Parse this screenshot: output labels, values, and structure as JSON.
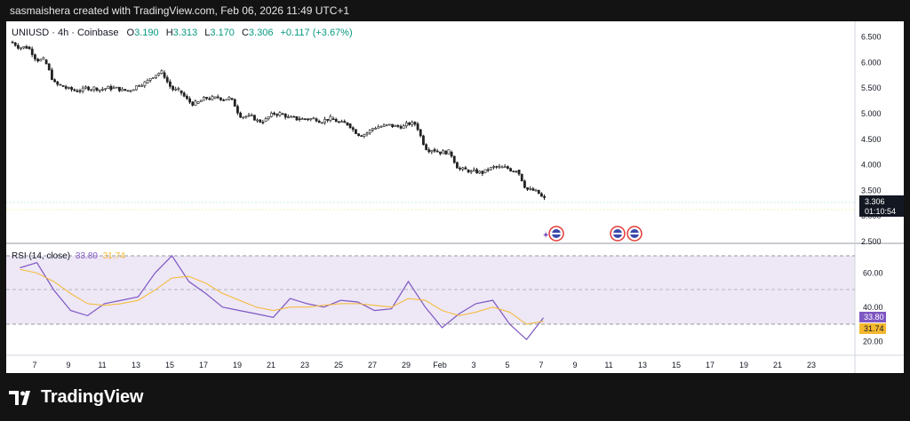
{
  "header": {
    "caption": "sasmaishera created with TradingView.com, Feb 06, 2026 11:49 UTC+1"
  },
  "footer": {
    "brand": "TradingView"
  },
  "legend": {
    "symbol": "UNIUSD",
    "interval": "4h",
    "exchange": "Coinbase",
    "o_label": "O",
    "o_value": "3.190",
    "h_label": "H",
    "h_value": "3.313",
    "l_label": "L",
    "l_value": "3.170",
    "c_label": "C",
    "c_value": "3.306",
    "change": "+0.117 (+3.67%)"
  },
  "rsi_legend": {
    "name": "RSI (14, close)",
    "rsi_value": "33.80",
    "ma_value": "31.74"
  },
  "badges": {
    "price": "3.306",
    "countdown": "01:10:54",
    "rsi": "33.80",
    "rsi_ma": "31.74"
  },
  "colors": {
    "up": "#089981",
    "down": "#f23645",
    "candle": "#222222",
    "rsi_line": "#7e57c2",
    "rsi_ma": "#f5b82e",
    "rsi_band": "#ede7f6",
    "badge_price": "#131722",
    "badge_rsi": "#7e57c2",
    "badge_ma": "#f5b82e",
    "flag_red": "#e53935"
  },
  "chart_data": [
    {
      "type": "candlestick",
      "symbol": "UNIUSD",
      "interval": "4h",
      "y_scale": [
        2.5,
        6.7
      ],
      "y_ticks": [
        "6.500",
        "6.000",
        "5.500",
        "5.000",
        "4.500",
        "4.000",
        "3.500",
        "3.000",
        "2.500"
      ],
      "x_ticks": [
        "7",
        "9",
        "11",
        "13",
        "15",
        "17",
        "19",
        "21",
        "23",
        "25",
        "27",
        "29",
        "Feb",
        "3",
        "5",
        "7",
        "9",
        "11",
        "13",
        "15",
        "17",
        "19",
        "21",
        "23"
      ],
      "x_range": [
        "Jan 6",
        "Feb 24"
      ],
      "approx_closes_daily": [
        {
          "date": "Jan 6",
          "close": 6.3
        },
        {
          "date": "Jan 7",
          "close": 6.05
        },
        {
          "date": "Jan 8",
          "close": 5.55
        },
        {
          "date": "Jan 9",
          "close": 5.45
        },
        {
          "date": "Jan 10",
          "close": 5.5
        },
        {
          "date": "Jan 11",
          "close": 5.5
        },
        {
          "date": "Jan 12",
          "close": 5.45
        },
        {
          "date": "Jan 13",
          "close": 5.6
        },
        {
          "date": "Jan 14",
          "close": 5.8
        },
        {
          "date": "Jan 15",
          "close": 5.45
        },
        {
          "date": "Jan 16",
          "close": 5.2
        },
        {
          "date": "Jan 17",
          "close": 5.3
        },
        {
          "date": "Jan 18",
          "close": 5.3
        },
        {
          "date": "Jan 19",
          "close": 4.95
        },
        {
          "date": "Jan 20",
          "close": 4.85
        },
        {
          "date": "Jan 21",
          "close": 5.0
        },
        {
          "date": "Jan 22",
          "close": 4.9
        },
        {
          "date": "Jan 23",
          "close": 4.9
        },
        {
          "date": "Jan 24",
          "close": 4.9
        },
        {
          "date": "Jan 25",
          "close": 4.8
        },
        {
          "date": "Jan 26",
          "close": 4.6
        },
        {
          "date": "Jan 27",
          "close": 4.75
        },
        {
          "date": "Jan 28",
          "close": 4.75
        },
        {
          "date": "Jan 29",
          "close": 4.8
        },
        {
          "date": "Jan 30",
          "close": 4.3
        },
        {
          "date": "Jan 31",
          "close": 4.25
        },
        {
          "date": "Feb 1",
          "close": 3.9
        },
        {
          "date": "Feb 2",
          "close": 3.85
        },
        {
          "date": "Feb 3",
          "close": 3.95
        },
        {
          "date": "Feb 4",
          "close": 3.9
        },
        {
          "date": "Feb 5",
          "close": 3.5
        },
        {
          "date": "Feb 6",
          "close": 3.306
        }
      ],
      "last_price": 3.306
    },
    {
      "type": "line",
      "name": "RSI (14, close)",
      "y_ticks": [
        "60.00",
        "40.00",
        "20.00"
      ],
      "bands": [
        30,
        50,
        70
      ],
      "series": [
        {
          "name": "RSI",
          "values": [
            63,
            66,
            50,
            38,
            35,
            42,
            44,
            46,
            60,
            70,
            55,
            48,
            40,
            38,
            36,
            34,
            45,
            42,
            40,
            44,
            43,
            38,
            39,
            55,
            40,
            28,
            36,
            42,
            44,
            30,
            21,
            33.8
          ]
        },
        {
          "name": "MA",
          "values": [
            62,
            60,
            55,
            48,
            42,
            41,
            42,
            44,
            50,
            57,
            58,
            54,
            48,
            44,
            40,
            38,
            40,
            40,
            41,
            42,
            42,
            41,
            40,
            45,
            44,
            38,
            35,
            37,
            40,
            37,
            30,
            31.74
          ]
        }
      ]
    }
  ]
}
